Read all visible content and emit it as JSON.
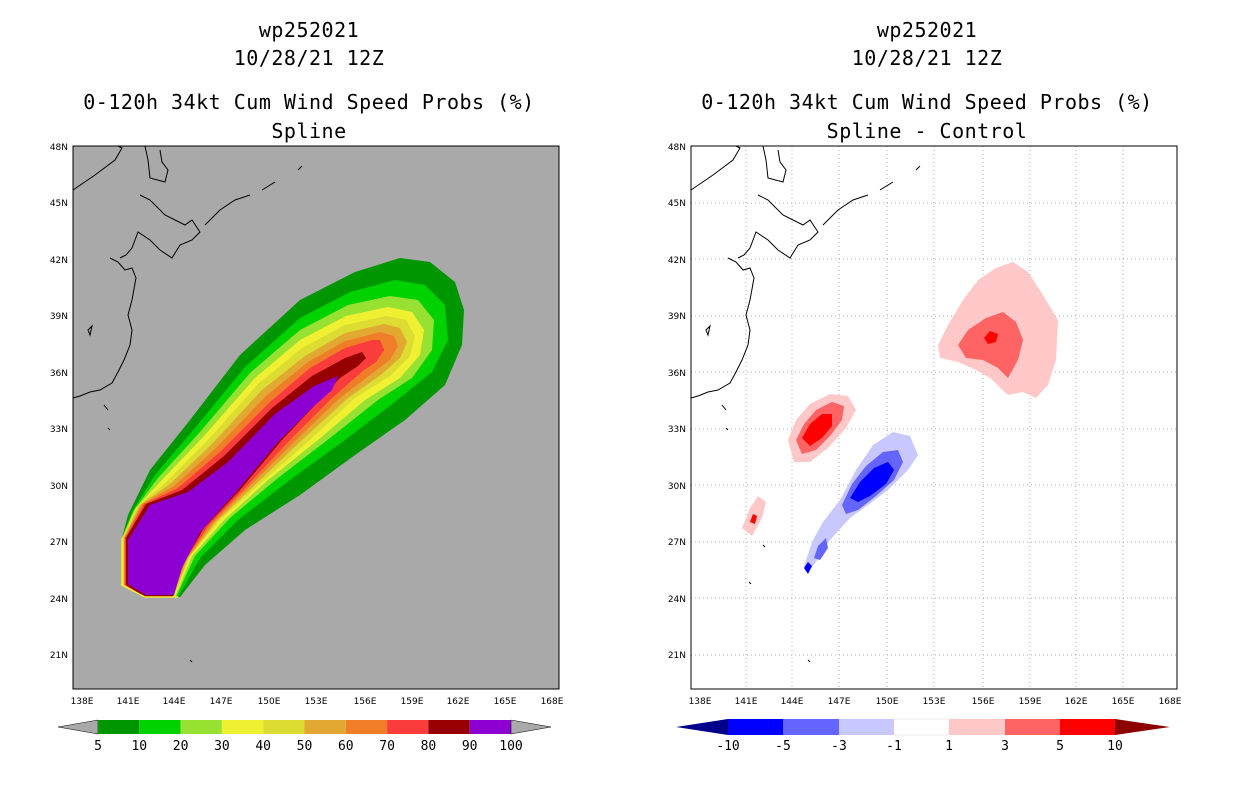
{
  "left": {
    "title_line1": "wp252021",
    "title_line2": "10/28/21 12Z",
    "title_line3": "0-120h 34kt Cum Wind Speed Probs (%)",
    "title_line4": "Spline",
    "background_color": "#a9a9a9",
    "colorbar": {
      "labels": [
        "5",
        "10",
        "20",
        "30",
        "40",
        "50",
        "60",
        "70",
        "80",
        "90",
        "100"
      ],
      "colors": [
        "#009600",
        "#00d200",
        "#96e132",
        "#f0f032",
        "#dcdc32",
        "#e1a932",
        "#f07d28",
        "#fa3c3c",
        "#960000",
        "#8c00d2"
      ]
    }
  },
  "right": {
    "title_line1": "wp252021",
    "title_line2": "10/28/21 12Z",
    "title_line3": "0-120h 34kt Cum Wind Speed Probs (%)",
    "title_line4": "Spline - Control",
    "background_color": "#ffffff",
    "colorbar": {
      "labels": [
        "-10",
        "-5",
        "-3",
        "-1",
        "1",
        "3",
        "5",
        "10"
      ],
      "colors": [
        "#00008c",
        "#0000ff",
        "#6464ff",
        "#c8c8ff",
        "#ffffff",
        "#ffc8c8",
        "#ff6464",
        "#ff0000",
        "#8c0000"
      ]
    }
  },
  "axes": {
    "lat_labels": [
      "48N",
      "45N",
      "42N",
      "39N",
      "36N",
      "33N",
      "30N",
      "27N",
      "24N",
      "21N"
    ],
    "lon_labels": [
      "138E",
      "141E",
      "144E",
      "147E",
      "150E",
      "153E",
      "156E",
      "159E",
      "162E",
      "165E",
      "168E"
    ]
  }
}
